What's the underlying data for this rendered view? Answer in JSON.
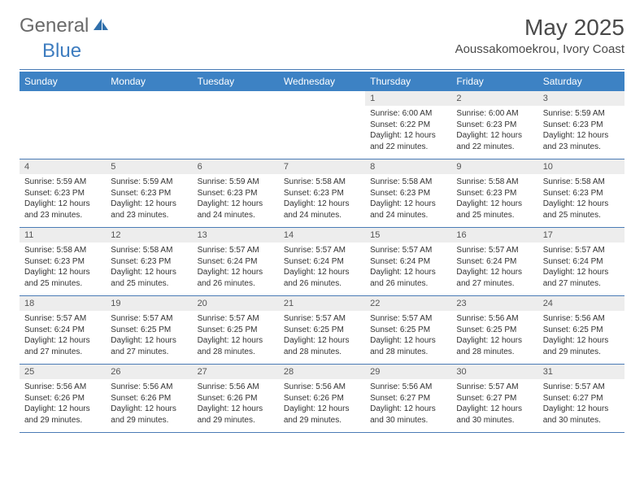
{
  "brand": {
    "general": "General",
    "blue": "Blue"
  },
  "header": {
    "month_title": "May 2025",
    "location": "Aoussakomoekrou, Ivory Coast"
  },
  "colors": {
    "header_bg": "#3d82c4",
    "header_text": "#ffffff",
    "daynum_bg": "#ededed",
    "rule": "#4a7bb5",
    "text": "#333333"
  },
  "day_names": [
    "Sunday",
    "Monday",
    "Tuesday",
    "Wednesday",
    "Thursday",
    "Friday",
    "Saturday"
  ],
  "weeks": [
    [
      {
        "day": "",
        "sunrise": "",
        "sunset": "",
        "daylight1": "",
        "daylight2": ""
      },
      {
        "day": "",
        "sunrise": "",
        "sunset": "",
        "daylight1": "",
        "daylight2": ""
      },
      {
        "day": "",
        "sunrise": "",
        "sunset": "",
        "daylight1": "",
        "daylight2": ""
      },
      {
        "day": "",
        "sunrise": "",
        "sunset": "",
        "daylight1": "",
        "daylight2": ""
      },
      {
        "day": "1",
        "sunrise": "Sunrise: 6:00 AM",
        "sunset": "Sunset: 6:22 PM",
        "daylight1": "Daylight: 12 hours",
        "daylight2": "and 22 minutes."
      },
      {
        "day": "2",
        "sunrise": "Sunrise: 6:00 AM",
        "sunset": "Sunset: 6:23 PM",
        "daylight1": "Daylight: 12 hours",
        "daylight2": "and 22 minutes."
      },
      {
        "day": "3",
        "sunrise": "Sunrise: 5:59 AM",
        "sunset": "Sunset: 6:23 PM",
        "daylight1": "Daylight: 12 hours",
        "daylight2": "and 23 minutes."
      }
    ],
    [
      {
        "day": "4",
        "sunrise": "Sunrise: 5:59 AM",
        "sunset": "Sunset: 6:23 PM",
        "daylight1": "Daylight: 12 hours",
        "daylight2": "and 23 minutes."
      },
      {
        "day": "5",
        "sunrise": "Sunrise: 5:59 AM",
        "sunset": "Sunset: 6:23 PM",
        "daylight1": "Daylight: 12 hours",
        "daylight2": "and 23 minutes."
      },
      {
        "day": "6",
        "sunrise": "Sunrise: 5:59 AM",
        "sunset": "Sunset: 6:23 PM",
        "daylight1": "Daylight: 12 hours",
        "daylight2": "and 24 minutes."
      },
      {
        "day": "7",
        "sunrise": "Sunrise: 5:58 AM",
        "sunset": "Sunset: 6:23 PM",
        "daylight1": "Daylight: 12 hours",
        "daylight2": "and 24 minutes."
      },
      {
        "day": "8",
        "sunrise": "Sunrise: 5:58 AM",
        "sunset": "Sunset: 6:23 PM",
        "daylight1": "Daylight: 12 hours",
        "daylight2": "and 24 minutes."
      },
      {
        "day": "9",
        "sunrise": "Sunrise: 5:58 AM",
        "sunset": "Sunset: 6:23 PM",
        "daylight1": "Daylight: 12 hours",
        "daylight2": "and 25 minutes."
      },
      {
        "day": "10",
        "sunrise": "Sunrise: 5:58 AM",
        "sunset": "Sunset: 6:23 PM",
        "daylight1": "Daylight: 12 hours",
        "daylight2": "and 25 minutes."
      }
    ],
    [
      {
        "day": "11",
        "sunrise": "Sunrise: 5:58 AM",
        "sunset": "Sunset: 6:23 PM",
        "daylight1": "Daylight: 12 hours",
        "daylight2": "and 25 minutes."
      },
      {
        "day": "12",
        "sunrise": "Sunrise: 5:58 AM",
        "sunset": "Sunset: 6:23 PM",
        "daylight1": "Daylight: 12 hours",
        "daylight2": "and 25 minutes."
      },
      {
        "day": "13",
        "sunrise": "Sunrise: 5:57 AM",
        "sunset": "Sunset: 6:24 PM",
        "daylight1": "Daylight: 12 hours",
        "daylight2": "and 26 minutes."
      },
      {
        "day": "14",
        "sunrise": "Sunrise: 5:57 AM",
        "sunset": "Sunset: 6:24 PM",
        "daylight1": "Daylight: 12 hours",
        "daylight2": "and 26 minutes."
      },
      {
        "day": "15",
        "sunrise": "Sunrise: 5:57 AM",
        "sunset": "Sunset: 6:24 PM",
        "daylight1": "Daylight: 12 hours",
        "daylight2": "and 26 minutes."
      },
      {
        "day": "16",
        "sunrise": "Sunrise: 5:57 AM",
        "sunset": "Sunset: 6:24 PM",
        "daylight1": "Daylight: 12 hours",
        "daylight2": "and 27 minutes."
      },
      {
        "day": "17",
        "sunrise": "Sunrise: 5:57 AM",
        "sunset": "Sunset: 6:24 PM",
        "daylight1": "Daylight: 12 hours",
        "daylight2": "and 27 minutes."
      }
    ],
    [
      {
        "day": "18",
        "sunrise": "Sunrise: 5:57 AM",
        "sunset": "Sunset: 6:24 PM",
        "daylight1": "Daylight: 12 hours",
        "daylight2": "and 27 minutes."
      },
      {
        "day": "19",
        "sunrise": "Sunrise: 5:57 AM",
        "sunset": "Sunset: 6:25 PM",
        "daylight1": "Daylight: 12 hours",
        "daylight2": "and 27 minutes."
      },
      {
        "day": "20",
        "sunrise": "Sunrise: 5:57 AM",
        "sunset": "Sunset: 6:25 PM",
        "daylight1": "Daylight: 12 hours",
        "daylight2": "and 28 minutes."
      },
      {
        "day": "21",
        "sunrise": "Sunrise: 5:57 AM",
        "sunset": "Sunset: 6:25 PM",
        "daylight1": "Daylight: 12 hours",
        "daylight2": "and 28 minutes."
      },
      {
        "day": "22",
        "sunrise": "Sunrise: 5:57 AM",
        "sunset": "Sunset: 6:25 PM",
        "daylight1": "Daylight: 12 hours",
        "daylight2": "and 28 minutes."
      },
      {
        "day": "23",
        "sunrise": "Sunrise: 5:56 AM",
        "sunset": "Sunset: 6:25 PM",
        "daylight1": "Daylight: 12 hours",
        "daylight2": "and 28 minutes."
      },
      {
        "day": "24",
        "sunrise": "Sunrise: 5:56 AM",
        "sunset": "Sunset: 6:25 PM",
        "daylight1": "Daylight: 12 hours",
        "daylight2": "and 29 minutes."
      }
    ],
    [
      {
        "day": "25",
        "sunrise": "Sunrise: 5:56 AM",
        "sunset": "Sunset: 6:26 PM",
        "daylight1": "Daylight: 12 hours",
        "daylight2": "and 29 minutes."
      },
      {
        "day": "26",
        "sunrise": "Sunrise: 5:56 AM",
        "sunset": "Sunset: 6:26 PM",
        "daylight1": "Daylight: 12 hours",
        "daylight2": "and 29 minutes."
      },
      {
        "day": "27",
        "sunrise": "Sunrise: 5:56 AM",
        "sunset": "Sunset: 6:26 PM",
        "daylight1": "Daylight: 12 hours",
        "daylight2": "and 29 minutes."
      },
      {
        "day": "28",
        "sunrise": "Sunrise: 5:56 AM",
        "sunset": "Sunset: 6:26 PM",
        "daylight1": "Daylight: 12 hours",
        "daylight2": "and 29 minutes."
      },
      {
        "day": "29",
        "sunrise": "Sunrise: 5:56 AM",
        "sunset": "Sunset: 6:27 PM",
        "daylight1": "Daylight: 12 hours",
        "daylight2": "and 30 minutes."
      },
      {
        "day": "30",
        "sunrise": "Sunrise: 5:57 AM",
        "sunset": "Sunset: 6:27 PM",
        "daylight1": "Daylight: 12 hours",
        "daylight2": "and 30 minutes."
      },
      {
        "day": "31",
        "sunrise": "Sunrise: 5:57 AM",
        "sunset": "Sunset: 6:27 PM",
        "daylight1": "Daylight: 12 hours",
        "daylight2": "and 30 minutes."
      }
    ]
  ]
}
